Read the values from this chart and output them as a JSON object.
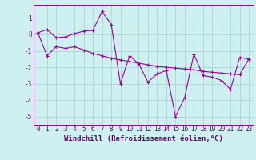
{
  "background_color": "#cff0f0",
  "grid_color": "#b0d8d8",
  "line_color": "#990099",
  "marker_color": "#990099",
  "xlabel": "Windchill (Refroidissement éolien,°C)",
  "xlabel_fontsize": 6.5,
  "tick_color": "#660066",
  "tick_fontsize": 5.5,
  "ylim": [
    -5.5,
    1.8
  ],
  "xlim": [
    -0.5,
    23.5
  ],
  "yticks": [
    -5,
    -4,
    -3,
    -2,
    -1,
    0,
    1
  ],
  "xticks": [
    0,
    1,
    2,
    3,
    4,
    5,
    6,
    7,
    8,
    9,
    10,
    11,
    12,
    13,
    14,
    15,
    16,
    17,
    18,
    19,
    20,
    21,
    22,
    23
  ],
  "series1_x": [
    0,
    1,
    2,
    3,
    4,
    5,
    6,
    7,
    8,
    9,
    10,
    11,
    12,
    13,
    14,
    15,
    16,
    17,
    18,
    19,
    20,
    21,
    22,
    23
  ],
  "series1_y": [
    0.1,
    0.3,
    -0.2,
    -0.15,
    0.05,
    0.2,
    0.25,
    1.4,
    0.6,
    -3.0,
    -1.3,
    -1.8,
    -2.9,
    -2.4,
    -2.2,
    -5.0,
    -3.85,
    -1.2,
    -2.5,
    -2.6,
    -2.8,
    -3.35,
    -1.4,
    -1.5
  ],
  "series2_x": [
    0,
    1,
    2,
    3,
    4,
    5,
    6,
    7,
    8,
    9,
    10,
    11,
    12,
    13,
    14,
    15,
    16,
    17,
    18,
    19,
    20,
    21,
    22,
    23
  ],
  "series2_y": [
    0.1,
    -1.3,
    -0.75,
    -0.85,
    -0.75,
    -0.95,
    -1.15,
    -1.3,
    -1.45,
    -1.55,
    -1.65,
    -1.75,
    -1.85,
    -1.95,
    -2.0,
    -2.05,
    -2.1,
    -2.15,
    -2.25,
    -2.3,
    -2.35,
    -2.4,
    -2.45,
    -1.5
  ]
}
